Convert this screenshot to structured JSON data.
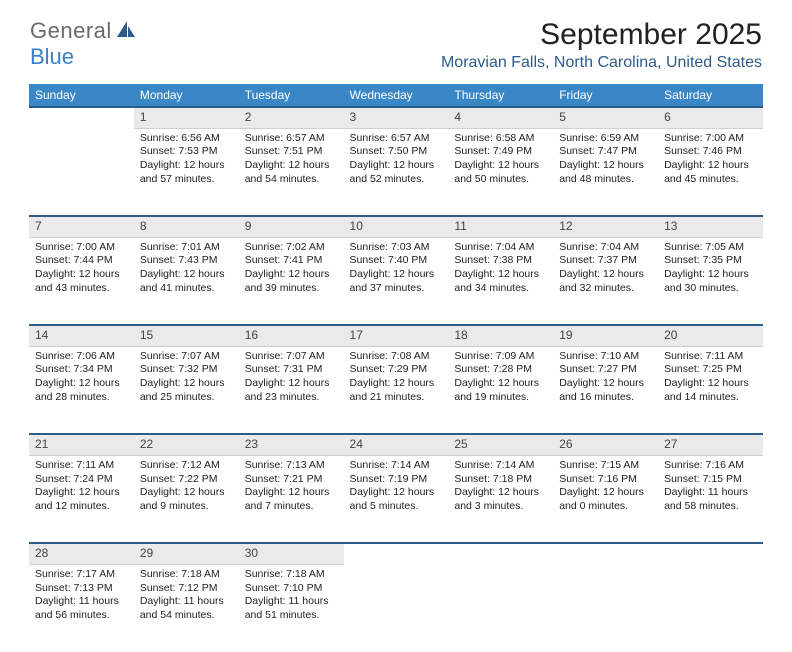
{
  "logo": {
    "text1": "General",
    "text2": "Blue"
  },
  "title": "September 2025",
  "location": "Moravian Falls, North Carolina, United States",
  "colors": {
    "header_bg": "#3a87c8",
    "accent": "#2d5c8a",
    "daynum_bg": "#eaeaea",
    "logo_blue": "#3a7fc4"
  },
  "weekdays": [
    "Sunday",
    "Monday",
    "Tuesday",
    "Wednesday",
    "Thursday",
    "Friday",
    "Saturday"
  ],
  "weeks": [
    {
      "nums": [
        "",
        "1",
        "2",
        "3",
        "4",
        "5",
        "6"
      ],
      "cells": [
        null,
        {
          "sunrise": "Sunrise: 6:56 AM",
          "sunset": "Sunset: 7:53 PM",
          "day1": "Daylight: 12 hours",
          "day2": "and 57 minutes."
        },
        {
          "sunrise": "Sunrise: 6:57 AM",
          "sunset": "Sunset: 7:51 PM",
          "day1": "Daylight: 12 hours",
          "day2": "and 54 minutes."
        },
        {
          "sunrise": "Sunrise: 6:57 AM",
          "sunset": "Sunset: 7:50 PM",
          "day1": "Daylight: 12 hours",
          "day2": "and 52 minutes."
        },
        {
          "sunrise": "Sunrise: 6:58 AM",
          "sunset": "Sunset: 7:49 PM",
          "day1": "Daylight: 12 hours",
          "day2": "and 50 minutes."
        },
        {
          "sunrise": "Sunrise: 6:59 AM",
          "sunset": "Sunset: 7:47 PM",
          "day1": "Daylight: 12 hours",
          "day2": "and 48 minutes."
        },
        {
          "sunrise": "Sunrise: 7:00 AM",
          "sunset": "Sunset: 7:46 PM",
          "day1": "Daylight: 12 hours",
          "day2": "and 45 minutes."
        }
      ]
    },
    {
      "nums": [
        "7",
        "8",
        "9",
        "10",
        "11",
        "12",
        "13"
      ],
      "cells": [
        {
          "sunrise": "Sunrise: 7:00 AM",
          "sunset": "Sunset: 7:44 PM",
          "day1": "Daylight: 12 hours",
          "day2": "and 43 minutes."
        },
        {
          "sunrise": "Sunrise: 7:01 AM",
          "sunset": "Sunset: 7:43 PM",
          "day1": "Daylight: 12 hours",
          "day2": "and 41 minutes."
        },
        {
          "sunrise": "Sunrise: 7:02 AM",
          "sunset": "Sunset: 7:41 PM",
          "day1": "Daylight: 12 hours",
          "day2": "and 39 minutes."
        },
        {
          "sunrise": "Sunrise: 7:03 AM",
          "sunset": "Sunset: 7:40 PM",
          "day1": "Daylight: 12 hours",
          "day2": "and 37 minutes."
        },
        {
          "sunrise": "Sunrise: 7:04 AM",
          "sunset": "Sunset: 7:38 PM",
          "day1": "Daylight: 12 hours",
          "day2": "and 34 minutes."
        },
        {
          "sunrise": "Sunrise: 7:04 AM",
          "sunset": "Sunset: 7:37 PM",
          "day1": "Daylight: 12 hours",
          "day2": "and 32 minutes."
        },
        {
          "sunrise": "Sunrise: 7:05 AM",
          "sunset": "Sunset: 7:35 PM",
          "day1": "Daylight: 12 hours",
          "day2": "and 30 minutes."
        }
      ]
    },
    {
      "nums": [
        "14",
        "15",
        "16",
        "17",
        "18",
        "19",
        "20"
      ],
      "cells": [
        {
          "sunrise": "Sunrise: 7:06 AM",
          "sunset": "Sunset: 7:34 PM",
          "day1": "Daylight: 12 hours",
          "day2": "and 28 minutes."
        },
        {
          "sunrise": "Sunrise: 7:07 AM",
          "sunset": "Sunset: 7:32 PM",
          "day1": "Daylight: 12 hours",
          "day2": "and 25 minutes."
        },
        {
          "sunrise": "Sunrise: 7:07 AM",
          "sunset": "Sunset: 7:31 PM",
          "day1": "Daylight: 12 hours",
          "day2": "and 23 minutes."
        },
        {
          "sunrise": "Sunrise: 7:08 AM",
          "sunset": "Sunset: 7:29 PM",
          "day1": "Daylight: 12 hours",
          "day2": "and 21 minutes."
        },
        {
          "sunrise": "Sunrise: 7:09 AM",
          "sunset": "Sunset: 7:28 PM",
          "day1": "Daylight: 12 hours",
          "day2": "and 19 minutes."
        },
        {
          "sunrise": "Sunrise: 7:10 AM",
          "sunset": "Sunset: 7:27 PM",
          "day1": "Daylight: 12 hours",
          "day2": "and 16 minutes."
        },
        {
          "sunrise": "Sunrise: 7:11 AM",
          "sunset": "Sunset: 7:25 PM",
          "day1": "Daylight: 12 hours",
          "day2": "and 14 minutes."
        }
      ]
    },
    {
      "nums": [
        "21",
        "22",
        "23",
        "24",
        "25",
        "26",
        "27"
      ],
      "cells": [
        {
          "sunrise": "Sunrise: 7:11 AM",
          "sunset": "Sunset: 7:24 PM",
          "day1": "Daylight: 12 hours",
          "day2": "and 12 minutes."
        },
        {
          "sunrise": "Sunrise: 7:12 AM",
          "sunset": "Sunset: 7:22 PM",
          "day1": "Daylight: 12 hours",
          "day2": "and 9 minutes."
        },
        {
          "sunrise": "Sunrise: 7:13 AM",
          "sunset": "Sunset: 7:21 PM",
          "day1": "Daylight: 12 hours",
          "day2": "and 7 minutes."
        },
        {
          "sunrise": "Sunrise: 7:14 AM",
          "sunset": "Sunset: 7:19 PM",
          "day1": "Daylight: 12 hours",
          "day2": "and 5 minutes."
        },
        {
          "sunrise": "Sunrise: 7:14 AM",
          "sunset": "Sunset: 7:18 PM",
          "day1": "Daylight: 12 hours",
          "day2": "and 3 minutes."
        },
        {
          "sunrise": "Sunrise: 7:15 AM",
          "sunset": "Sunset: 7:16 PM",
          "day1": "Daylight: 12 hours",
          "day2": "and 0 minutes."
        },
        {
          "sunrise": "Sunrise: 7:16 AM",
          "sunset": "Sunset: 7:15 PM",
          "day1": "Daylight: 11 hours",
          "day2": "and 58 minutes."
        }
      ]
    },
    {
      "nums": [
        "28",
        "29",
        "30",
        "",
        "",
        "",
        ""
      ],
      "cells": [
        {
          "sunrise": "Sunrise: 7:17 AM",
          "sunset": "Sunset: 7:13 PM",
          "day1": "Daylight: 11 hours",
          "day2": "and 56 minutes."
        },
        {
          "sunrise": "Sunrise: 7:18 AM",
          "sunset": "Sunset: 7:12 PM",
          "day1": "Daylight: 11 hours",
          "day2": "and 54 minutes."
        },
        {
          "sunrise": "Sunrise: 7:18 AM",
          "sunset": "Sunset: 7:10 PM",
          "day1": "Daylight: 11 hours",
          "day2": "and 51 minutes."
        },
        null,
        null,
        null,
        null
      ]
    }
  ]
}
